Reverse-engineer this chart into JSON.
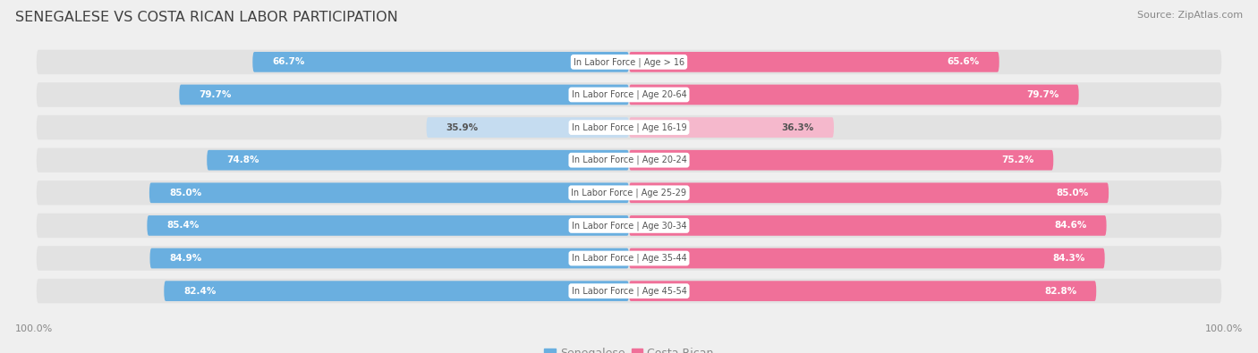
{
  "title": "SENEGALESE VS COSTA RICAN LABOR PARTICIPATION",
  "source": "Source: ZipAtlas.com",
  "categories": [
    "In Labor Force | Age > 16",
    "In Labor Force | Age 20-64",
    "In Labor Force | Age 16-19",
    "In Labor Force | Age 20-24",
    "In Labor Force | Age 25-29",
    "In Labor Force | Age 30-34",
    "In Labor Force | Age 35-44",
    "In Labor Force | Age 45-54"
  ],
  "senegalese": [
    66.7,
    79.7,
    35.9,
    74.8,
    85.0,
    85.4,
    84.9,
    82.4
  ],
  "costa_rican": [
    65.6,
    79.7,
    36.3,
    75.2,
    85.0,
    84.6,
    84.3,
    82.8
  ],
  "blue_full": "#6aafe0",
  "blue_light": "#c5dcf0",
  "pink_full": "#f07099",
  "pink_light": "#f5b8cc",
  "bg_color": "#efefef",
  "row_bg": "#e2e2e2",
  "title_color": "#404040",
  "source_color": "#888888",
  "label_white": "#ffffff",
  "label_dark": "#555555",
  "center_label_color": "#555555",
  "legend_blue": "#6aafe0",
  "legend_pink": "#f07099",
  "footer_color": "#888888",
  "max_val": 100.0,
  "threshold": 50
}
